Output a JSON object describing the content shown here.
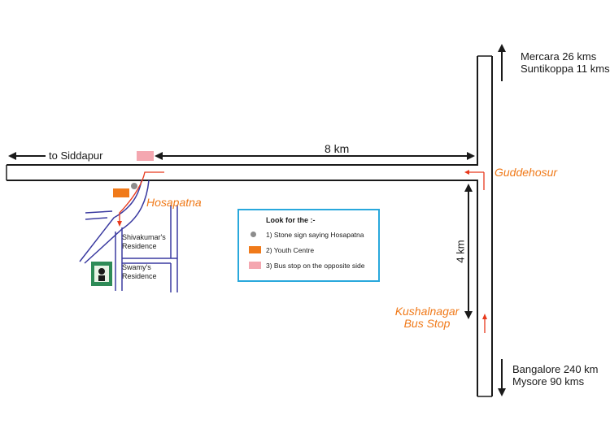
{
  "labels": {
    "mercara": "Mercara 26 kms",
    "suntikoppa": "Suntikoppa 11 kms",
    "to_siddapur": "to Siddapur",
    "distance_8km": "8 km",
    "guddehosur": "Guddehosur",
    "hosapatna": "Hosapatna",
    "shivakumar_line1": "Shivakumar's",
    "shivakumar_line2": "Residence",
    "swamy_line1": "Swamy's",
    "swamy_line2": "Residence",
    "distance_4km": "4 km",
    "kushalnagar_line1": "Kushalnagar",
    "kushalnagar_line2": "Bus Stop",
    "bangalore": "Bangalore 240 km",
    "mysore": "Mysore 90 kms"
  },
  "legend": {
    "title": "Look for the :-",
    "items": [
      {
        "text": "1) Stone sign saying Hosapatna",
        "marker": "grey-dot",
        "color": "#8c8c8c"
      },
      {
        "text": "2) Youth Centre",
        "marker": "orange-rect",
        "color": "#f07a1a"
      },
      {
        "text": "3) Bus stop on the opposite side",
        "marker": "pink-rect",
        "color": "#f4a7b0"
      }
    ]
  },
  "colors": {
    "road_outline": "#1a1a1a",
    "lane_road": "#3a3aa0",
    "route_arrow": "#e8391c",
    "label_orange": "#f07a1a",
    "legend_border": "#29a8dc",
    "youth_centre": "#f07a1a",
    "bus_stop": "#f4a7b0",
    "stone_sign": "#8c8c8c",
    "house_green": "#2e8b57"
  }
}
